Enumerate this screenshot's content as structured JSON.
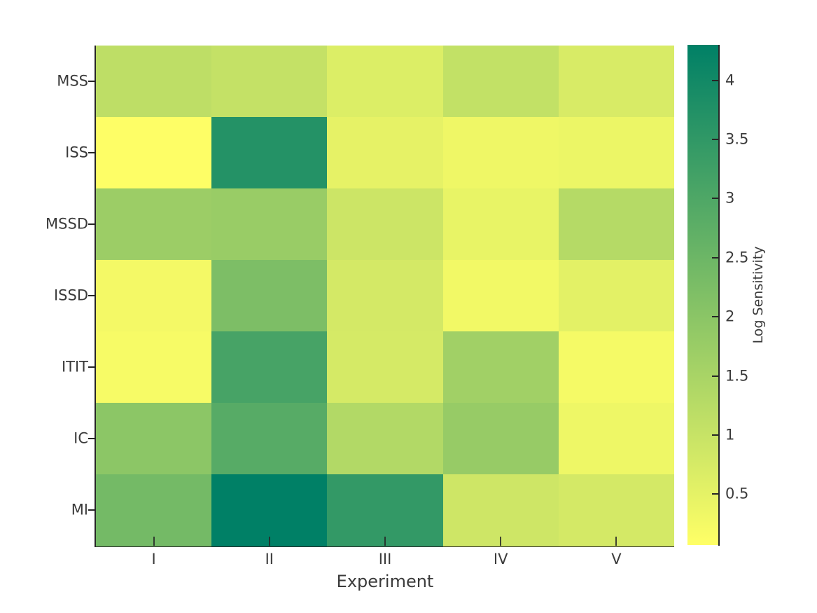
{
  "chart_data": {
    "type": "heatmap",
    "title": "",
    "xlabel": "Experiment",
    "ylabel": "",
    "colorbar_label": "Log Sensitivity",
    "columns": [
      "I",
      "II",
      "III",
      "IV",
      "V"
    ],
    "rows": [
      "MSS",
      "ISS",
      "MSSD",
      "ISSD",
      "ITIT",
      "IC",
      "MI"
    ],
    "values": [
      [
        1.15,
        1.05,
        0.65,
        1.08,
        0.72
      ],
      [
        0.09,
        3.7,
        0.49,
        0.34,
        0.38
      ],
      [
        1.72,
        1.76,
        0.92,
        0.45,
        1.29
      ],
      [
        0.26,
        2.23,
        0.79,
        0.28,
        0.54
      ],
      [
        0.2,
        3.12,
        0.77,
        1.63,
        0.24
      ],
      [
        1.97,
        2.86,
        1.34,
        1.8,
        0.35
      ],
      [
        2.37,
        4.3,
        3.45,
        0.89,
        0.79
      ]
    ],
    "vmin": 0.07,
    "vmax": 4.3,
    "colormap": "summer reversed (yellow to dark green)",
    "colorbar_ticks": [
      4,
      3.5,
      3,
      2.5,
      2,
      1.5,
      1,
      0.5
    ],
    "colorbar_tick_labels": [
      "4",
      "3.5",
      "3",
      "2.5",
      "2",
      "1.5",
      "1",
      "0.5"
    ],
    "legend_position": "right colorbar",
    "grid": false
  },
  "colors": {
    "background": "#ffffff",
    "axis_line": "#262626",
    "tick_label": "#3b3b3b",
    "colormap_low": "#ffff66",
    "colormap_high": "#008066"
  }
}
